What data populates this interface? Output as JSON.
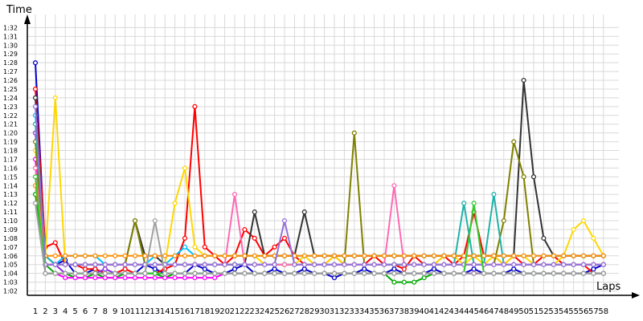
{
  "chart_data": {
    "type": "line",
    "ylabel": "Time",
    "xlabel": "Laps",
    "grid": true,
    "ylim": [
      61.5,
      93.5
    ],
    "xlim": [
      1,
      58
    ],
    "y_ticks": [
      "1:02",
      "1:03",
      "1:04",
      "1:05",
      "1:06",
      "1:07",
      "1:08",
      "1:09",
      "1:10",
      "1:11",
      "1:12",
      "1:13",
      "1:14",
      "1:15",
      "1:16",
      "1:17",
      "1:18",
      "1:19",
      "1:20",
      "1:21",
      "1:22",
      "1:23",
      "1:24",
      "1:25",
      "1:26",
      "1:27",
      "1:28",
      "1:29",
      "1:30",
      "1:31",
      "1:32"
    ],
    "x_ticks": [
      "1",
      "2",
      "3",
      "4",
      "5",
      "6",
      "7",
      "8",
      "9",
      "10",
      "11",
      "12",
      "13",
      "14",
      "15",
      "16",
      "17",
      "18",
      "19",
      "20",
      "21",
      "22",
      "23",
      "24",
      "25",
      "26",
      "27",
      "28",
      "29",
      "30",
      "31",
      "32",
      "33",
      "34",
      "35",
      "36",
      "37",
      "38",
      "39",
      "40",
      "41",
      "42",
      "43",
      "44",
      "45",
      "46",
      "47",
      "48",
      "49",
      "50",
      "51",
      "52",
      "53",
      "54",
      "55",
      "56",
      "57",
      "58"
    ],
    "series": [
      {
        "color": "#0000cc",
        "values": [
          88,
          66,
          65,
          65.5,
          64,
          64,
          64.5,
          64,
          64,
          64,
          64,
          65,
          64.5,
          64,
          64,
          64,
          65,
          64.5,
          64,
          64,
          64.5,
          65,
          64,
          64,
          64.5,
          64,
          64,
          64.5,
          64,
          64,
          63.5,
          64,
          64,
          64.5,
          64,
          64,
          64.5,
          64,
          64,
          64,
          64.5,
          64,
          64,
          64,
          64.5,
          64,
          64,
          64,
          64.5,
          64,
          64,
          64,
          64,
          64,
          64,
          64,
          64.5,
          65
        ]
      },
      {
        "color": "#ff0000",
        "values": [
          85,
          67,
          67.5,
          65,
          65,
          64.5,
          64.5,
          64,
          64,
          64.5,
          64,
          64,
          64,
          64.5,
          65,
          68,
          83,
          67,
          66,
          65,
          66,
          69,
          68,
          66,
          67,
          68,
          66,
          65,
          65,
          65,
          66,
          65,
          65,
          65,
          66,
          65,
          65,
          64.5,
          66,
          65,
          65,
          66,
          65,
          66,
          71,
          66,
          66,
          65,
          66,
          65,
          65,
          66,
          66,
          65,
          65,
          65,
          64,
          64
        ]
      },
      {
        "color": "#ffd700",
        "values": [
          78,
          66,
          84,
          65,
          65,
          65,
          65,
          65,
          65,
          65,
          65,
          65,
          65,
          65,
          72,
          76,
          67,
          66,
          66,
          66,
          66,
          66,
          66,
          65,
          65,
          65,
          65,
          66,
          65,
          65,
          66,
          65,
          65,
          65,
          65,
          65,
          65,
          65,
          65,
          65,
          65,
          66,
          66,
          65,
          66,
          65,
          66,
          65,
          66,
          66,
          65,
          65,
          65,
          66,
          69,
          70,
          68,
          66
        ]
      },
      {
        "color": "#00aa00",
        "values": [
          73,
          65,
          64,
          64,
          63.5,
          63.5,
          64,
          63.5,
          63.5,
          64,
          64,
          64,
          64,
          63.5,
          64,
          64,
          64,
          64,
          64,
          64,
          64,
          64,
          64,
          64,
          64,
          64,
          64,
          64,
          64,
          64,
          64,
          64,
          64,
          64,
          64,
          64,
          63,
          63,
          63,
          63.5,
          64,
          64,
          64,
          64,
          64,
          64,
          64,
          64,
          64,
          64,
          64,
          64,
          64,
          64,
          64,
          64,
          64,
          64
        ]
      },
      {
        "color": "#8a2be2",
        "values": [
          80,
          65,
          65,
          64,
          64,
          64,
          64,
          64.5,
          64,
          64,
          64,
          64,
          64,
          64,
          64,
          64,
          64,
          64,
          64,
          64,
          64,
          64,
          64,
          64,
          64,
          64,
          64,
          64,
          64,
          64,
          64,
          64,
          64,
          64,
          64,
          64,
          64,
          64,
          64,
          64,
          64,
          64,
          64,
          64,
          64,
          64,
          64,
          64,
          64,
          64,
          64,
          64,
          64,
          64,
          64,
          64,
          64,
          64
        ]
      },
      {
        "color": "#ff00ff",
        "values": [
          77,
          64,
          64,
          63.5,
          63.5,
          63.5,
          63.5,
          63.5,
          63.5,
          63.5,
          63.5,
          63.5,
          63.5,
          63.5,
          63.5,
          63.5,
          63.5,
          63.5,
          63.5,
          64,
          64,
          64,
          64,
          64,
          64,
          64,
          64,
          64,
          64,
          64,
          64,
          64,
          64,
          64,
          64,
          64,
          64,
          64,
          64,
          64,
          64,
          64,
          64,
          64,
          64,
          64,
          64,
          64,
          64,
          64,
          64,
          64,
          64,
          64,
          64,
          64,
          64,
          64
        ]
      },
      {
        "color": "#00bfff",
        "values": [
          82,
          66,
          65,
          66,
          66,
          66,
          66,
          65,
          65,
          65,
          65,
          65,
          66,
          65,
          66,
          67,
          66,
          66,
          66,
          66,
          66,
          66,
          66,
          66,
          66,
          66,
          66,
          66,
          66,
          66,
          66,
          66,
          66,
          66,
          66,
          66,
          66,
          66,
          66,
          66,
          66,
          66,
          66,
          66,
          66,
          66,
          66,
          66,
          66,
          66,
          66,
          66,
          66,
          66,
          66,
          66,
          66,
          66
        ]
      },
      {
        "color": "#333333",
        "values": [
          84,
          65,
          65,
          65,
          65,
          65,
          65,
          65,
          65,
          65,
          70,
          66,
          66,
          65,
          65,
          65,
          65,
          65,
          65,
          65,
          65,
          65,
          71,
          66,
          66,
          66,
          66,
          71,
          66,
          66,
          66,
          66,
          66,
          66,
          66,
          66,
          66,
          66,
          66,
          66,
          66,
          66,
          66,
          66,
          66,
          66,
          66,
          66,
          66,
          86,
          75,
          68,
          66,
          66,
          66,
          66,
          66,
          66
        ]
      },
      {
        "color": "#808000",
        "values": [
          79,
          65,
          65,
          65,
          65,
          65,
          65,
          65,
          65,
          65,
          70,
          65,
          65,
          65,
          65,
          65,
          65,
          65,
          65,
          65,
          65,
          65,
          65,
          65,
          65,
          65,
          65,
          65,
          65,
          65,
          65,
          65,
          80,
          65,
          65,
          65,
          65,
          65,
          65,
          65,
          65,
          65,
          65,
          65,
          65,
          65,
          65,
          70,
          79,
          75,
          65,
          65,
          65,
          65,
          65,
          65,
          65,
          65
        ]
      },
      {
        "color": "#20b2aa",
        "values": [
          81,
          66,
          65,
          65,
          65,
          65,
          65,
          65,
          65,
          65,
          65,
          65,
          65,
          65,
          65,
          65,
          65,
          65,
          65,
          65,
          65,
          65,
          65,
          65,
          65,
          65,
          65,
          65,
          65,
          65,
          65,
          65,
          65,
          65,
          65,
          65,
          65,
          65,
          65,
          65,
          65,
          65,
          65,
          72,
          65,
          65,
          73,
          65,
          65,
          65,
          65,
          65,
          65,
          65,
          65,
          65,
          65,
          65
        ]
      },
      {
        "color": "#ff69b4",
        "values": [
          76,
          65,
          65,
          65,
          65,
          65,
          65,
          65,
          65,
          65,
          65,
          65,
          65,
          65,
          65,
          65,
          65,
          65,
          65,
          65,
          73,
          65,
          65,
          65,
          65,
          65,
          65,
          65,
          65,
          65,
          65,
          65,
          65,
          65,
          65,
          65,
          74,
          65,
          65,
          65,
          65,
          65,
          65,
          65,
          65,
          65,
          65,
          65,
          65,
          65,
          65,
          65,
          65,
          65,
          65,
          65,
          65,
          65
        ]
      },
      {
        "color": "#ff8c00",
        "values": [
          74,
          66,
          66,
          66,
          66,
          66,
          66,
          66,
          66,
          66,
          66,
          66,
          66,
          66,
          66,
          66,
          66,
          66,
          66,
          66,
          66,
          66,
          66,
          66,
          66,
          66,
          66,
          66,
          66,
          66,
          66,
          66,
          66,
          66,
          66,
          66,
          66,
          66,
          66,
          66,
          66,
          66,
          66,
          66,
          66,
          66,
          66,
          66,
          66,
          66,
          66,
          66,
          66,
          66,
          66,
          66,
          66,
          66
        ]
      },
      {
        "color": "#9370db",
        "values": [
          83,
          65,
          65,
          65,
          65,
          65,
          65,
          65,
          65,
          65,
          65,
          65,
          65,
          65,
          65,
          65,
          65,
          65,
          65,
          65,
          65,
          65,
          65,
          65,
          65,
          70,
          65,
          65,
          65,
          65,
          65,
          65,
          65,
          65,
          65,
          65,
          65,
          65,
          65,
          65,
          65,
          65,
          65,
          65,
          65,
          65,
          65,
          65,
          65,
          65,
          65,
          65,
          65,
          65,
          65,
          65,
          65,
          65
        ]
      },
      {
        "color": "#32cd32",
        "values": [
          75,
          64,
          64,
          64,
          64,
          64,
          64,
          64,
          64,
          64,
          64,
          64,
          64,
          64,
          64,
          64,
          64,
          64,
          64,
          64,
          64,
          64,
          64,
          64,
          64,
          64,
          64,
          64,
          64,
          64,
          64,
          64,
          64,
          64,
          64,
          64,
          64,
          64,
          64,
          64,
          64,
          64,
          64,
          64,
          72,
          64,
          64,
          64,
          64,
          64,
          64,
          64,
          64,
          64,
          64,
          64,
          64,
          64
        ]
      },
      {
        "color": "#a0a0a0",
        "values": [
          72,
          64,
          64,
          64,
          64,
          64,
          64,
          64,
          64,
          64,
          64,
          64,
          70,
          64,
          64,
          64,
          64,
          64,
          64,
          64,
          64,
          64,
          64,
          64,
          64,
          64,
          64,
          64,
          64,
          64,
          64,
          64,
          64,
          64,
          64,
          64,
          64,
          64,
          64,
          64,
          64,
          64,
          64,
          64,
          64,
          64,
          64,
          64,
          64,
          64,
          64,
          64,
          64,
          64,
          64,
          64,
          64,
          64
        ]
      }
    ]
  }
}
